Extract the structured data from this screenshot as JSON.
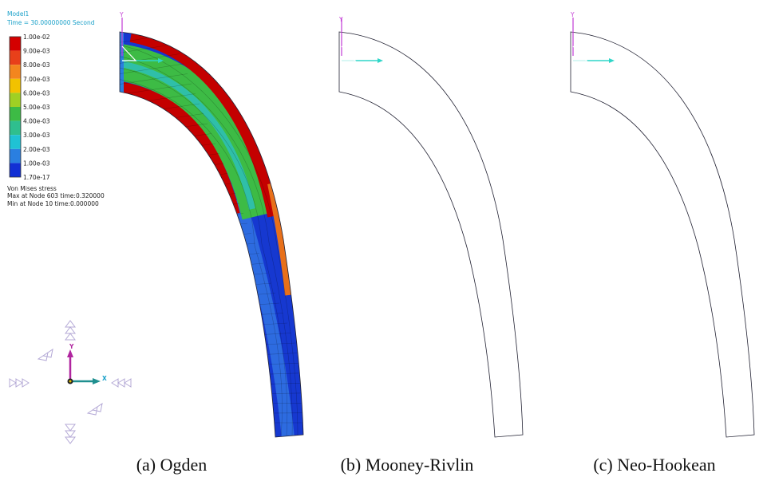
{
  "header": {
    "model": "Model1",
    "time": "Time = 30.00000000 Second"
  },
  "legend": {
    "labels": [
      "1.00e-02",
      "9.00e-03",
      "8.00e-03",
      "7.00e-03",
      "6.00e-03",
      "5.00e-03",
      "4.00e-03",
      "3.00e-03",
      "2.00e-03",
      "1.00e-03",
      "1.70e-17"
    ],
    "quantity": "Von Mises stress",
    "max_info": "Max at Node 603 time:0.320000",
    "min_info": "Min at Node 10 time:0.000000"
  },
  "triad": {
    "x_label": "X",
    "y_label": "Y"
  },
  "panels": [
    {
      "axis_label": "Y",
      "caption": "(a) Ogden"
    },
    {
      "axis_label": "Y",
      "caption": "(b) Mooney-Rivlin"
    },
    {
      "axis_label": "Y",
      "caption": "(c) Neo-Hookean"
    }
  ]
}
